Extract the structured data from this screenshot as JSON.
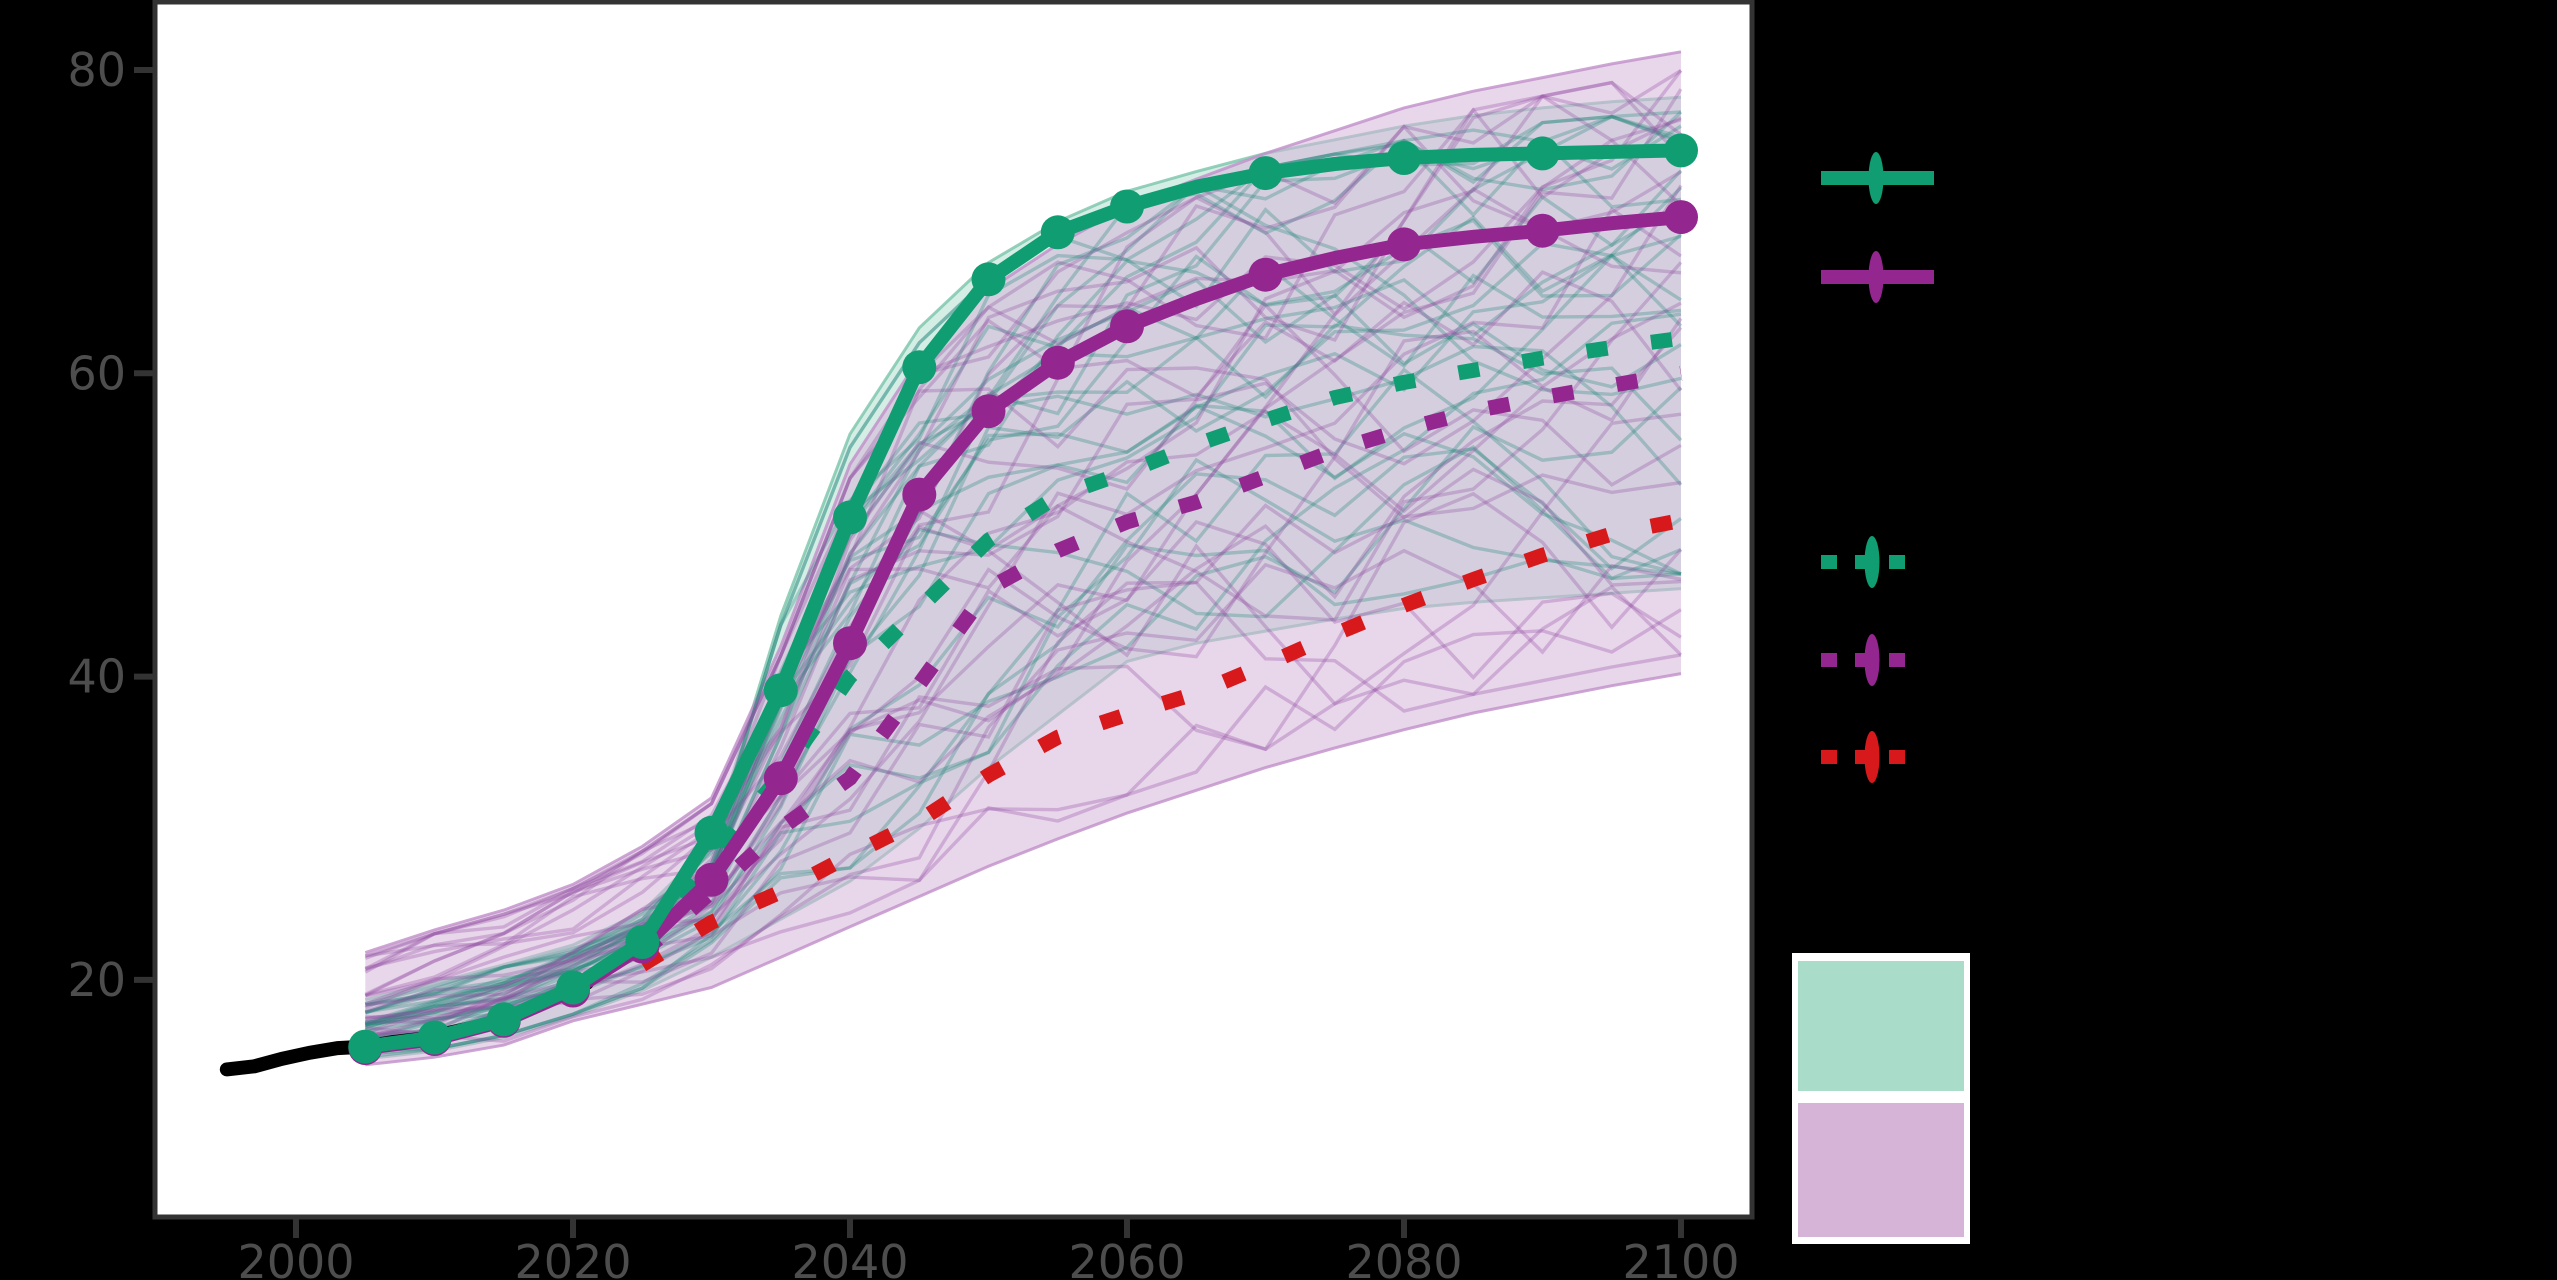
{
  "chart_data": {
    "type": "line",
    "title": "",
    "xlabel": "",
    "ylabel": "",
    "grid": false,
    "legend_position": "right",
    "panel_bg": "#ffffff",
    "outer_bg": "#000000",
    "axis_text_color": "#4d4d4d",
    "axis_line_color": "#333333",
    "x_axis": {
      "ticks": [
        {
          "label": "2000",
          "value": 2000
        },
        {
          "label": "2020",
          "value": 2020
        },
        {
          "label": "2040",
          "value": 2040
        },
        {
          "label": "2060",
          "value": 2060
        },
        {
          "label": "2080",
          "value": 2080
        },
        {
          "label": "2100",
          "value": 2100
        }
      ],
      "range": [
        1990,
        2105
      ]
    },
    "y_axis": {
      "ticks": [
        {
          "label": "80",
          "value": 80
        },
        {
          "label": "60",
          "value": 60
        },
        {
          "label": "40",
          "value": 40
        },
        {
          "label": "20",
          "value": 20
        }
      ],
      "range": [
        4.5,
        84.5
      ]
    },
    "history": {
      "id": "historical-line",
      "color": "#000000",
      "width": 14,
      "years": [
        1995,
        1997,
        1999,
        2001,
        2003,
        2005,
        2007,
        2009,
        2011,
        2013,
        2015,
        2017,
        2019,
        2021
      ],
      "values": [
        14.1,
        14.3,
        14.8,
        15.2,
        15.5,
        15.6,
        15.9,
        16.1,
        16.5,
        16.9,
        17.4,
        18.2,
        19.0,
        19.8
      ]
    },
    "series": [
      {
        "id": "green-solid-scenario",
        "style": "solid",
        "marker": "circle",
        "color": "#109d71",
        "width": 14,
        "years": [
          2005,
          2010,
          2015,
          2020,
          2025,
          2030,
          2035,
          2040,
          2045,
          2050,
          2055,
          2060,
          2065,
          2070,
          2075,
          2080,
          2085,
          2090,
          2095,
          2100
        ],
        "values": [
          15.6,
          16.2,
          17.4,
          19.5,
          22.5,
          29.7,
          39.1,
          50.5,
          60.4,
          66.2,
          69.3,
          71.0,
          72.3,
          73.2,
          73.8,
          74.2,
          74.4,
          74.5,
          74.6,
          74.7
        ],
        "marker_years": [
          2005,
          2010,
          2015,
          2020,
          2025,
          2030,
          2035,
          2040,
          2045,
          2050,
          2055,
          2060,
          2070,
          2080,
          2090,
          2100
        ]
      },
      {
        "id": "purple-solid-scenario",
        "style": "solid",
        "marker": "circle",
        "color": "#94278f",
        "width": 14,
        "years": [
          2005,
          2010,
          2015,
          2020,
          2025,
          2030,
          2035,
          2040,
          2045,
          2050,
          2055,
          2060,
          2065,
          2070,
          2075,
          2080,
          2085,
          2090,
          2095,
          2100
        ],
        "values": [
          15.5,
          16.1,
          17.3,
          19.3,
          22.2,
          26.6,
          33.3,
          42.2,
          52.0,
          57.5,
          60.7,
          63.1,
          64.9,
          66.5,
          67.6,
          68.5,
          69.0,
          69.4,
          69.9,
          70.3
        ],
        "marker_years": [
          2005,
          2010,
          2015,
          2020,
          2025,
          2030,
          2035,
          2040,
          2045,
          2050,
          2055,
          2060,
          2070,
          2080,
          2090,
          2100
        ]
      },
      {
        "id": "green-dashed-median",
        "style": "dashed",
        "marker": "none",
        "color": "#109d71",
        "width": 15,
        "years": [
          2025,
          2030,
          2035,
          2040,
          2045,
          2050,
          2055,
          2060,
          2065,
          2070,
          2075,
          2080,
          2085,
          2090,
          2095,
          2100
        ],
        "values": [
          22.0,
          28.0,
          33.5,
          40.0,
          44.5,
          49.0,
          51.9,
          53.5,
          55.3,
          56.9,
          58.4,
          59.4,
          60.2,
          61.0,
          61.7,
          62.3
        ]
      },
      {
        "id": "purple-dashed-median",
        "style": "dashed",
        "marker": "none",
        "color": "#94278f",
        "width": 15,
        "years": [
          2025,
          2030,
          2035,
          2040,
          2045,
          2050,
          2055,
          2060,
          2065,
          2070,
          2075,
          2080,
          2085,
          2090,
          2095,
          2100
        ],
        "values": [
          21.8,
          25.8,
          30.0,
          33.3,
          39.5,
          45.8,
          48.3,
          50.2,
          51.5,
          53.2,
          54.9,
          56.3,
          57.5,
          58.4,
          59.2,
          60.0
        ]
      },
      {
        "id": "red-dashed-median",
        "style": "dashed",
        "marker": "none",
        "color": "#d7191c",
        "width": 15,
        "years": [
          2025,
          2030,
          2035,
          2040,
          2045,
          2050,
          2055,
          2060,
          2065,
          2070,
          2075,
          2080,
          2085,
          2090,
          2095,
          2100
        ],
        "values": [
          21.0,
          23.8,
          25.8,
          28.2,
          30.5,
          33.5,
          36.0,
          37.5,
          38.9,
          40.8,
          42.8,
          44.7,
          46.4,
          48.0,
          49.4,
          50.3
        ]
      }
    ],
    "bands": [
      {
        "id": "green-range-band",
        "fill": "#a9dccb",
        "fill_opacity": 0.5,
        "edge": "#79c4aa",
        "years": [
          2005,
          2010,
          2015,
          2020,
          2025,
          2030,
          2035,
          2040,
          2045,
          2050,
          2055,
          2060,
          2065,
          2070,
          2075,
          2080,
          2085,
          2090,
          2095,
          2100
        ],
        "upper": [
          18.7,
          19.8,
          21.0,
          22.3,
          24.5,
          29.0,
          44.0,
          56.0,
          63.0,
          67.3,
          70.0,
          72.0,
          73.3,
          74.5,
          75.4,
          76.3,
          77.0,
          77.5,
          77.9,
          78.2
        ],
        "lower": [
          14.8,
          15.3,
          16.2,
          17.6,
          19.3,
          21.5,
          24.0,
          26.5,
          30.0,
          34.0,
          37.5,
          41.0,
          42.2,
          43.0,
          43.8,
          44.5,
          44.9,
          45.2,
          45.5,
          45.8
        ]
      },
      {
        "id": "purple-range-band",
        "fill": "#d6b5da",
        "fill_opacity": 0.55,
        "edge": "#c08fc9",
        "years": [
          2005,
          2010,
          2015,
          2020,
          2025,
          2030,
          2035,
          2040,
          2045,
          2050,
          2055,
          2060,
          2065,
          2070,
          2075,
          2080,
          2085,
          2090,
          2095,
          2100
        ],
        "upper": [
          21.8,
          23.3,
          24.6,
          26.3,
          28.8,
          32.0,
          42.0,
          54.0,
          61.0,
          65.5,
          68.5,
          71.0,
          72.8,
          74.5,
          76.0,
          77.5,
          78.6,
          79.5,
          80.4,
          81.2
        ],
        "lower": [
          14.4,
          14.9,
          15.7,
          17.3,
          18.4,
          19.5,
          21.5,
          23.5,
          25.5,
          27.5,
          29.3,
          31.0,
          32.5,
          34.0,
          35.3,
          36.5,
          37.6,
          38.5,
          39.4,
          40.2
        ]
      }
    ],
    "ensemble": {
      "teal_line_color": "#1f8578",
      "purple_line_color": "#8e4a9e",
      "count_each": 27,
      "line_opacity": 0.3
    },
    "legend": {
      "items": [
        {
          "id": "green-solid-key",
          "style": "solid",
          "color": "#109d71"
        },
        {
          "id": "purple-solid-key",
          "style": "solid",
          "color": "#94278f"
        },
        {
          "id": "green-dashed-key",
          "style": "dashed",
          "color": "#109d71"
        },
        {
          "id": "purple-dashed-key",
          "style": "dashed",
          "color": "#94278f"
        },
        {
          "id": "red-dashed-key",
          "style": "dashed",
          "color": "#d7191c"
        }
      ],
      "swatches": [
        {
          "id": "green-range-swatch",
          "color": "#a9ddca"
        },
        {
          "id": "purple-range-swatch",
          "color": "#d5b4d8"
        }
      ],
      "swatch_box_bg": "#ffffff"
    }
  }
}
